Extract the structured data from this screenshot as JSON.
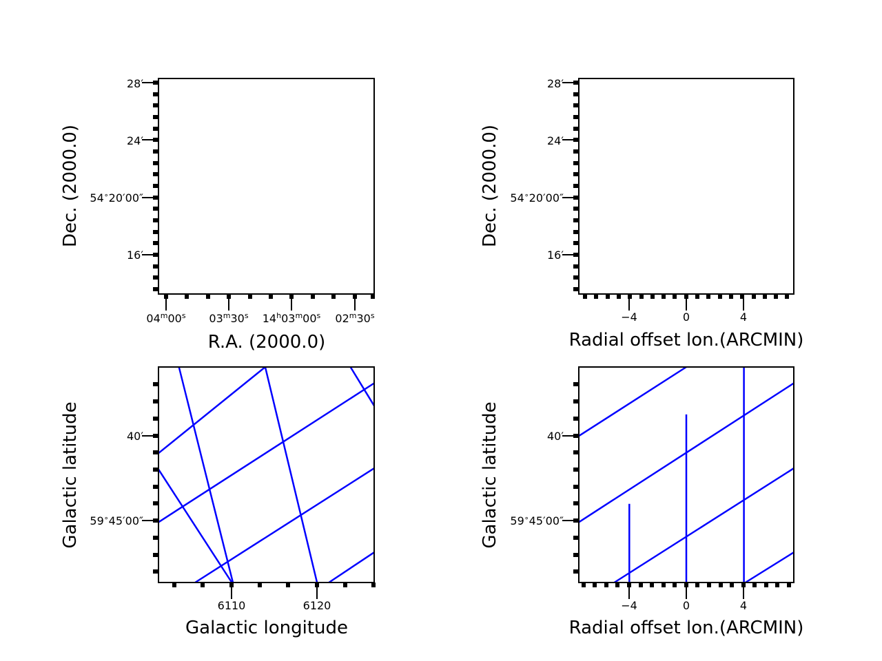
{
  "chart_data": [
    {
      "type": "line",
      "panel": "top-left",
      "xlabel": "R.A. (2000.0)",
      "ylabel": "Dec. (2000.0)",
      "x_ticks": [
        {
          "parts": [
            [
              "04",
              "m",
              false
            ],
            [
              "00",
              "s",
              false
            ]
          ]
        },
        {
          "parts": [
            [
              "03",
              "m",
              false
            ],
            [
              "30",
              "s",
              false
            ]
          ]
        },
        {
          "parts": [
            [
              "14",
              "h",
              false
            ],
            [
              "03",
              "m",
              false
            ],
            [
              "00",
              "s",
              false
            ]
          ]
        },
        {
          "parts": [
            [
              "02",
              "m",
              false
            ],
            [
              "30",
              "s",
              false
            ]
          ]
        }
      ],
      "y_ticks": [
        {
          "parts": [
            [
              "28",
              "′",
              false
            ]
          ]
        },
        {
          "parts": [
            [
              "24",
              "′",
              false
            ]
          ]
        },
        {
          "parts": [
            [
              "54",
              "∘",
              true
            ],
            [
              "20",
              "′",
              false
            ],
            [
              "00",
              "″",
              false
            ]
          ]
        },
        {
          "parts": [
            [
              "16",
              "′",
              false
            ]
          ]
        }
      ],
      "lines": []
    },
    {
      "type": "line",
      "panel": "top-right",
      "xlabel": "Radial offset lon.(ARCMIN)",
      "ylabel": "Dec. (2000.0)",
      "x_ticks": [
        {
          "parts": [
            [
              "−4",
              "",
              false
            ]
          ]
        },
        {
          "parts": [
            [
              "0",
              "",
              false
            ]
          ]
        },
        {
          "parts": [
            [
              "4",
              "",
              false
            ]
          ]
        }
      ],
      "y_ticks": [
        {
          "parts": [
            [
              "28",
              "′",
              false
            ]
          ]
        },
        {
          "parts": [
            [
              "24",
              "′",
              false
            ]
          ]
        },
        {
          "parts": [
            [
              "54",
              "∘",
              true
            ],
            [
              "20",
              "′",
              false
            ],
            [
              "00",
              "″",
              false
            ]
          ]
        },
        {
          "parts": [
            [
              "16",
              "′",
              false
            ]
          ]
        }
      ],
      "lines": []
    },
    {
      "type": "line",
      "panel": "bottom-left",
      "xlabel": "Galactic longitude",
      "ylabel": "Galactic latitude",
      "x_ticks": [
        {
          "parts": [
            [
              "6110",
              "",
              false
            ]
          ]
        },
        {
          "parts": [
            [
              "6120",
              "",
              false
            ]
          ]
        }
      ],
      "y_ticks": [
        {
          "parts": [
            [
              "40",
              "′",
              false
            ]
          ]
        },
        {
          "parts": [
            [
              "59",
              "∘",
              true
            ],
            [
              "45",
              "′",
              false
            ],
            [
              "00",
              "″",
              false
            ]
          ]
        }
      ],
      "line_color": "#0000ff",
      "lines": [
        {
          "x": [
            0.095,
            0.345
          ],
          "y": [
            1.0,
            0.0
          ]
        },
        {
          "x": [
            0.0,
            0.34
          ],
          "y": [
            0.525,
            0.0
          ]
        },
        {
          "x": [
            0.495,
            0.735
          ],
          "y": [
            1.0,
            0.0
          ]
        },
        {
          "x": [
            0.89,
            1.0
          ],
          "y": [
            1.0,
            0.82
          ]
        },
        {
          "x": [
            0.0,
            0.495
          ],
          "y": [
            0.6,
            1.0
          ]
        },
        {
          "x": [
            0.0,
            1.0
          ],
          "y": [
            0.28,
            0.925
          ]
        },
        {
          "x": [
            0.17,
            1.0
          ],
          "y": [
            0.0,
            0.53
          ]
        },
        {
          "x": [
            0.79,
            1.0
          ],
          "y": [
            0.0,
            0.14
          ]
        }
      ]
    },
    {
      "type": "line",
      "panel": "bottom-right",
      "xlabel": "Radial offset lon.(ARCMIN)",
      "ylabel": "Galactic latitude",
      "x_ticks": [
        {
          "parts": [
            [
              "−4",
              "",
              false
            ]
          ]
        },
        {
          "parts": [
            [
              "0",
              "",
              false
            ]
          ]
        },
        {
          "parts": [
            [
              "4",
              "",
              false
            ]
          ]
        }
      ],
      "y_ticks": [
        {
          "parts": [
            [
              "40",
              "′",
              false
            ]
          ]
        },
        {
          "parts": [
            [
              "59",
              "∘",
              true
            ],
            [
              "45",
              "′",
              false
            ],
            [
              "00",
              "″",
              false
            ]
          ]
        }
      ],
      "line_color": "#0000ff",
      "lines": [
        {
          "x": [
            0.0,
            0.5
          ],
          "y": [
            0.68,
            1.0
          ]
        },
        {
          "x": [
            0.0,
            1.0
          ],
          "y": [
            0.28,
            0.925
          ]
        },
        {
          "x": [
            0.165,
            1.0
          ],
          "y": [
            0.0,
            0.53
          ]
        },
        {
          "x": [
            0.775,
            1.0
          ],
          "y": [
            0.0,
            0.14
          ]
        },
        {
          "x": [
            0.235,
            0.235
          ],
          "y": [
            0.0,
            0.365
          ]
        },
        {
          "x": [
            0.5,
            0.5
          ],
          "y": [
            0.0,
            0.78
          ]
        },
        {
          "x": [
            0.768,
            0.768
          ],
          "y": [
            0.0,
            1.0
          ]
        }
      ]
    }
  ]
}
